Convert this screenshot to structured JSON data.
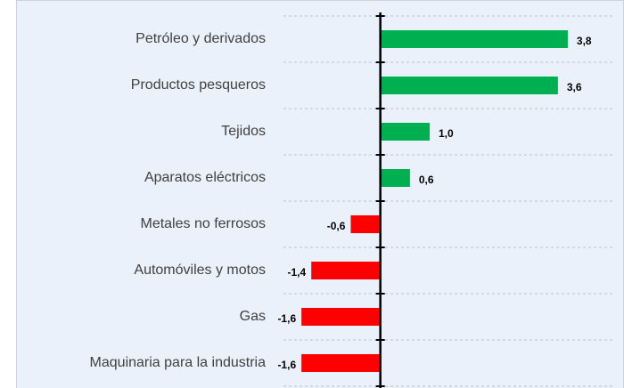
{
  "chart_data": {
    "type": "barh",
    "categories": [
      "Petróleo y derivados",
      "Productos pesqueros",
      "Tejidos",
      "Aparatos eléctricos",
      "Metales no ferrosos",
      "Automóviles y motos",
      "Gas",
      "Maquinaria para la industria"
    ],
    "values": [
      3.8,
      3.6,
      1.0,
      0.6,
      -0.6,
      -1.4,
      -1.6,
      -1.6
    ],
    "value_labels": [
      "3,8",
      "3,6",
      "1,0",
      "0,6",
      "-0,6",
      "-1,4",
      "-1,6",
      "-1,6"
    ],
    "positive_color": "#00b050",
    "negative_color": "#ff0000",
    "xlim": [
      -2,
      4
    ],
    "grid": true
  }
}
